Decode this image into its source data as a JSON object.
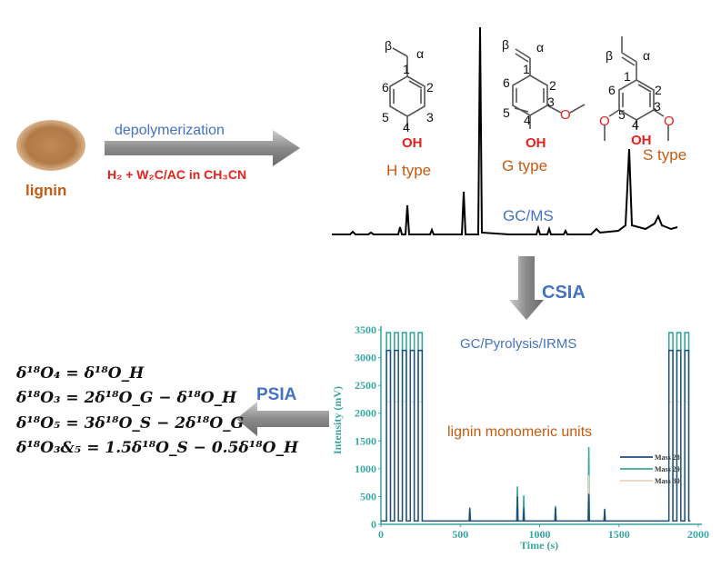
{
  "lignin_label": "lignin",
  "depolymerization_label": "depolymerization",
  "conditions_label": "H₂ + W₂C/AC in CH₃CN",
  "structures": {
    "h_type": "H type",
    "g_type": "G type",
    "s_type": "S type",
    "alpha": "α",
    "beta": "β",
    "oh": "OH",
    "o": "O"
  },
  "gcms_label": "GC/MS",
  "csia_label": "CSIA",
  "psia_label": "PSIA",
  "equations": [
    "δ¹⁸O₄ = δ¹⁸O_H",
    "δ¹⁸O₃ = 2δ¹⁸O_G − δ¹⁸O_H",
    "δ¹⁸O₅ = 3δ¹⁸O_S − 2δ¹⁸O_G",
    "δ¹⁸O₃&₅ = 1.5δ¹⁸O_S − 0.5δ¹⁸O_H"
  ],
  "colors": {
    "blue": "#4472c4",
    "orange": "#c55a11",
    "red": "#e8211d",
    "teal": "#3aa6a0",
    "beige": "#e8d5bd",
    "navy": "#1f4e79"
  },
  "chart_data": {
    "type": "line",
    "title": "GC/Pyrolysis/IRMS",
    "annotation": "lignin monomeric units",
    "xlabel": "Time (s)",
    "ylabel": "Intensity (mV)",
    "xlim": [
      0,
      2000
    ],
    "ylim": [
      0,
      3500
    ],
    "xticks": [
      "0",
      "500",
      "1000",
      "1500",
      "2000"
    ],
    "yticks": [
      "0",
      "500",
      "1000",
      "1500",
      "2000",
      "2500",
      "3000",
      "3500"
    ],
    "legend_position": "right",
    "series": [
      {
        "name": "Mass 28",
        "color": "#1f4e79",
        "reference_pulse_peak": 3130,
        "peaks": [
          [
            560,
            300
          ],
          [
            860,
            500
          ],
          [
            900,
            300
          ],
          [
            1100,
            300
          ],
          [
            1310,
            550
          ],
          [
            1410,
            280
          ]
        ]
      },
      {
        "name": "Mass 29",
        "color": "#3aa6a0",
        "reference_pulse_peak": 3450,
        "peaks": [
          [
            560,
            280
          ],
          [
            860,
            680
          ],
          [
            900,
            520
          ],
          [
            1100,
            330
          ],
          [
            1310,
            1390
          ],
          [
            1410,
            250
          ]
        ]
      },
      {
        "name": "Mass 30",
        "color": "#e8d5bd",
        "reference_pulse_peak": 2200,
        "peaks": [
          [
            560,
            150
          ],
          [
            860,
            400
          ],
          [
            900,
            300
          ],
          [
            1100,
            200
          ],
          [
            1310,
            880
          ],
          [
            1410,
            150
          ]
        ]
      }
    ],
    "reference_pulses_start": [
      35,
      85,
      135,
      185,
      235,
      1815,
      1865,
      1915
    ],
    "baseline": 60
  }
}
